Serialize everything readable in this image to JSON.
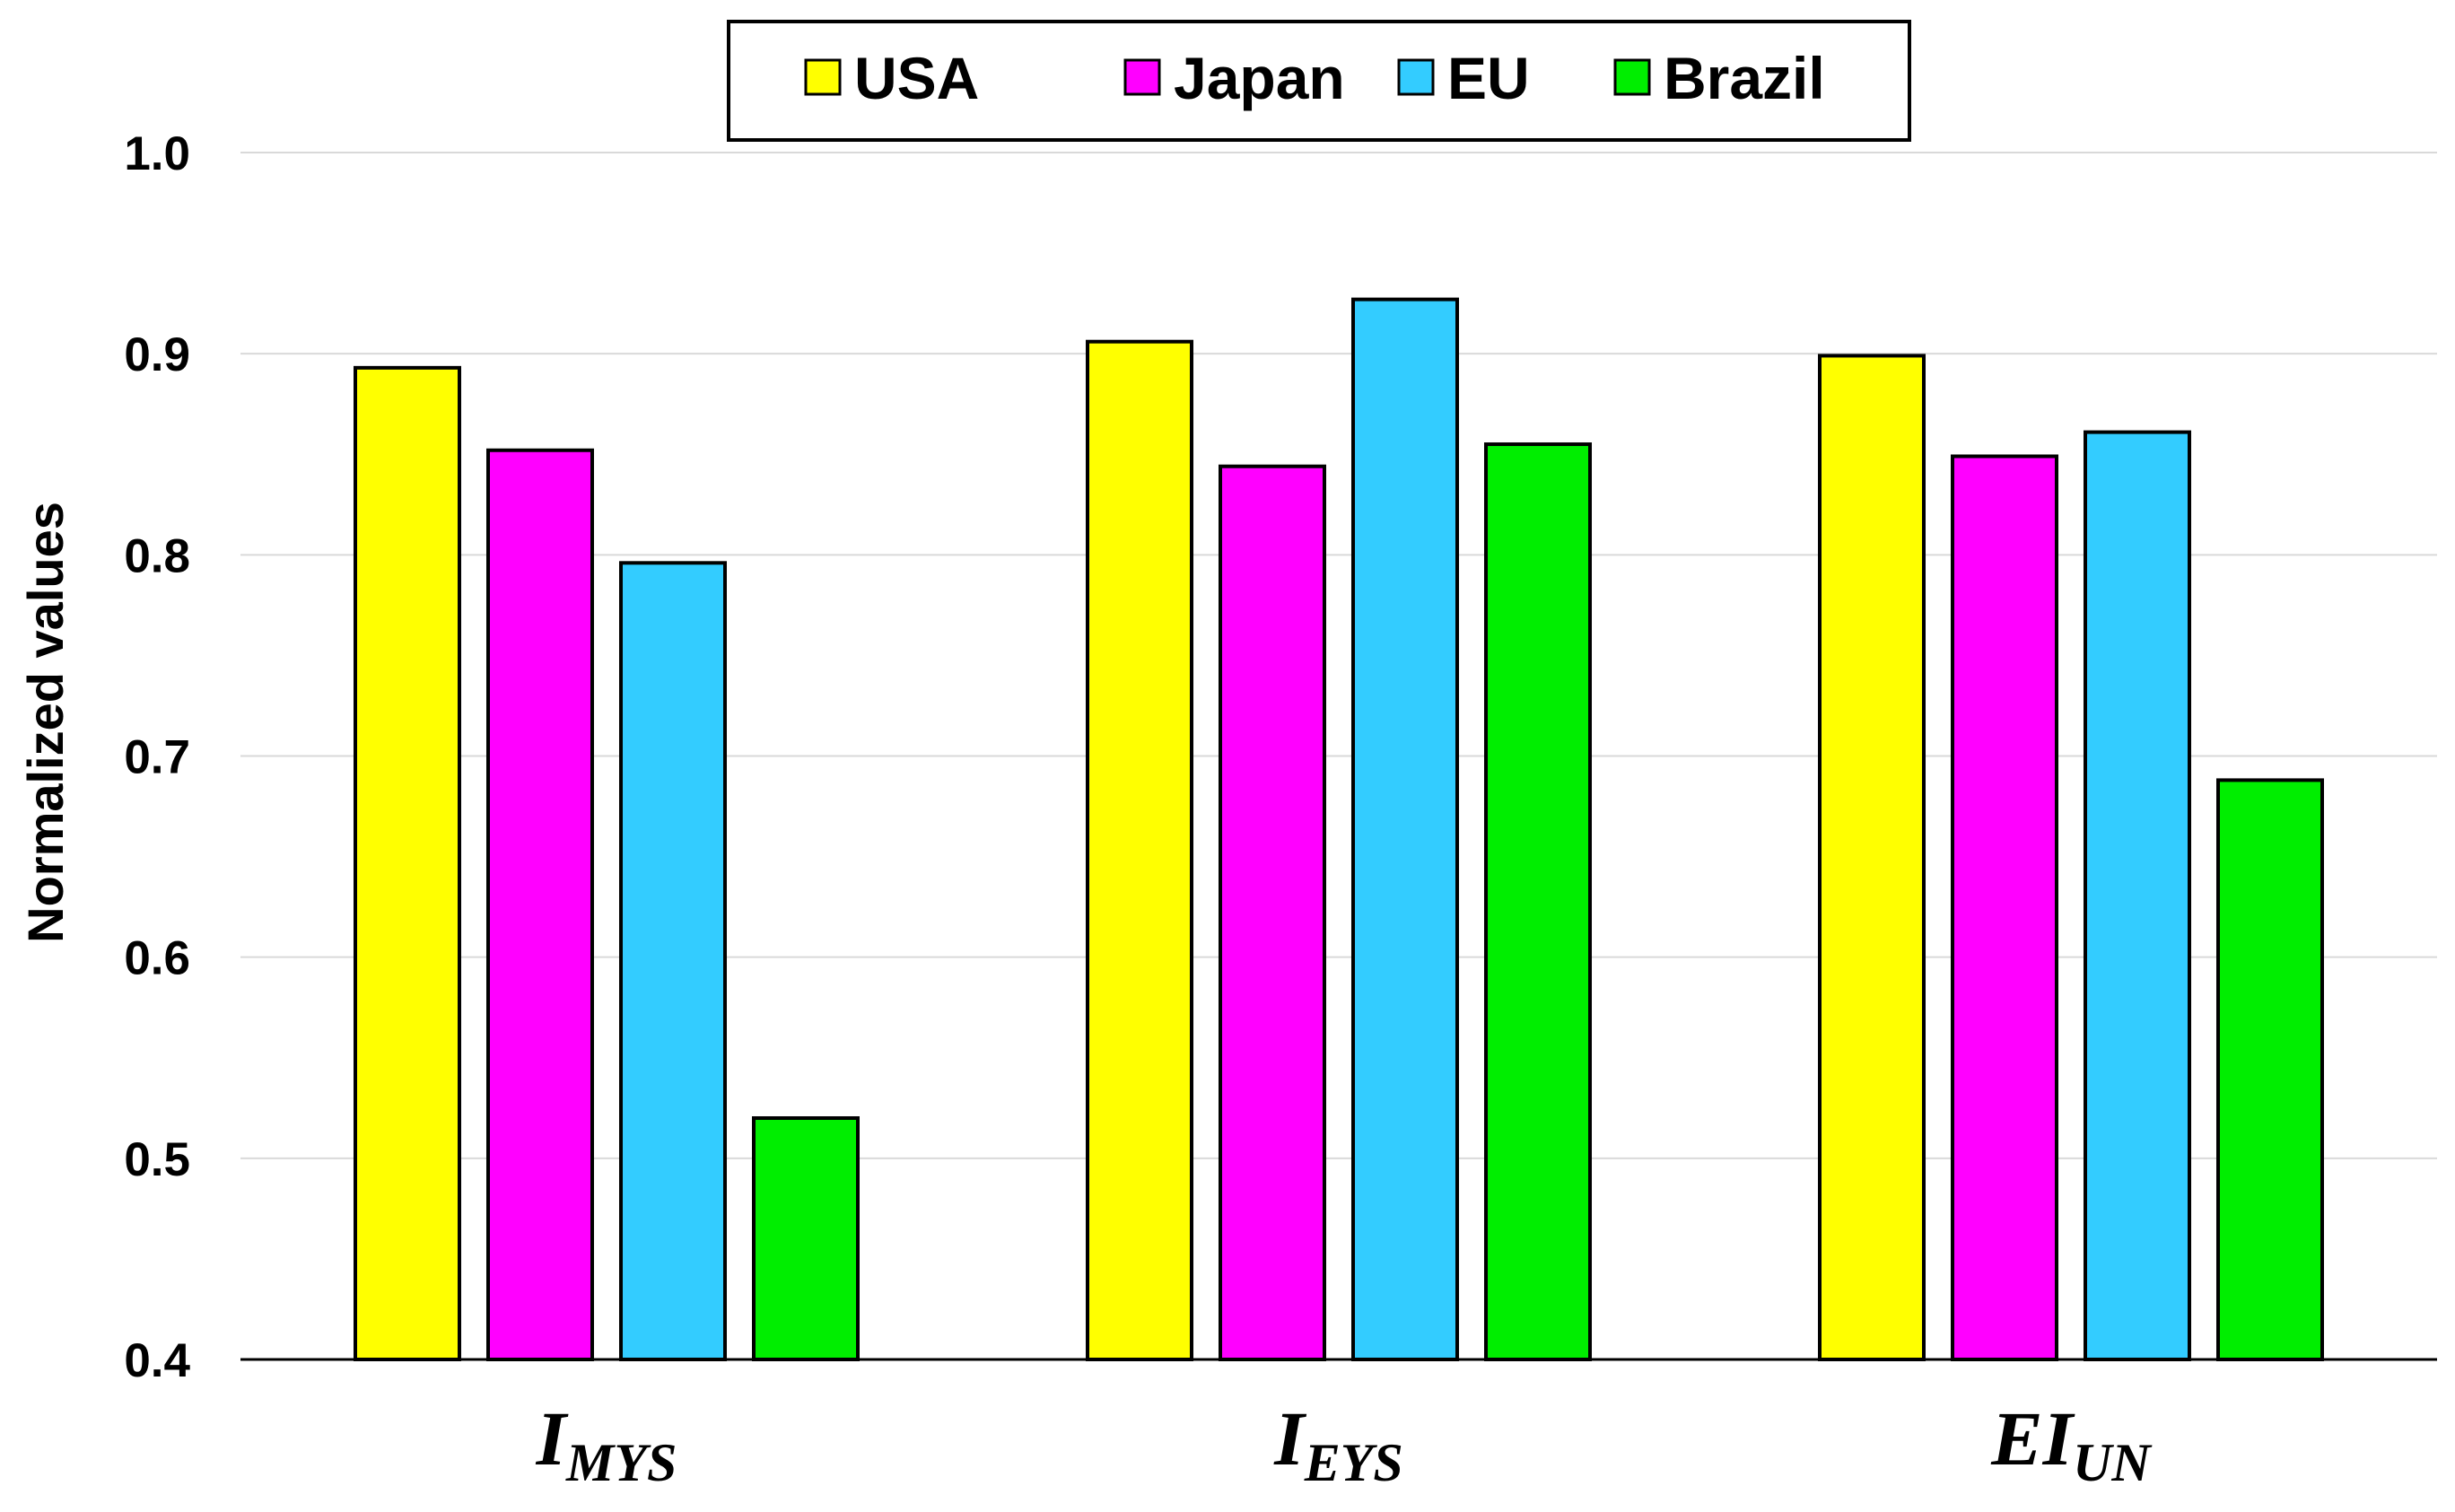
{
  "chart_data": {
    "type": "bar",
    "categories": [
      {
        "main": "I",
        "sub": "MYS"
      },
      {
        "main": "I",
        "sub": "EYS"
      },
      {
        "main": "EI",
        "sub": "UN"
      }
    ],
    "series": [
      {
        "name": "USA",
        "color": "#FFFF00",
        "values": [
          0.893,
          0.906,
          0.899
        ]
      },
      {
        "name": "Japan",
        "color": "#FF00FF",
        "values": [
          0.852,
          0.844,
          0.849
        ]
      },
      {
        "name": "EU",
        "color": "#33CCFF",
        "values": [
          0.796,
          0.927,
          0.861
        ]
      },
      {
        "name": "Brazil",
        "color": "#00EE00",
        "values": [
          0.52,
          0.855,
          0.688
        ]
      }
    ],
    "ylabel": "Normalized values",
    "ylim": [
      0.4,
      1.0
    ],
    "yticks": [
      "0.4",
      "0.5",
      "0.6",
      "0.7",
      "0.8",
      "0.9",
      "1.0"
    ],
    "grid": true,
    "legend_position": "top-center"
  }
}
